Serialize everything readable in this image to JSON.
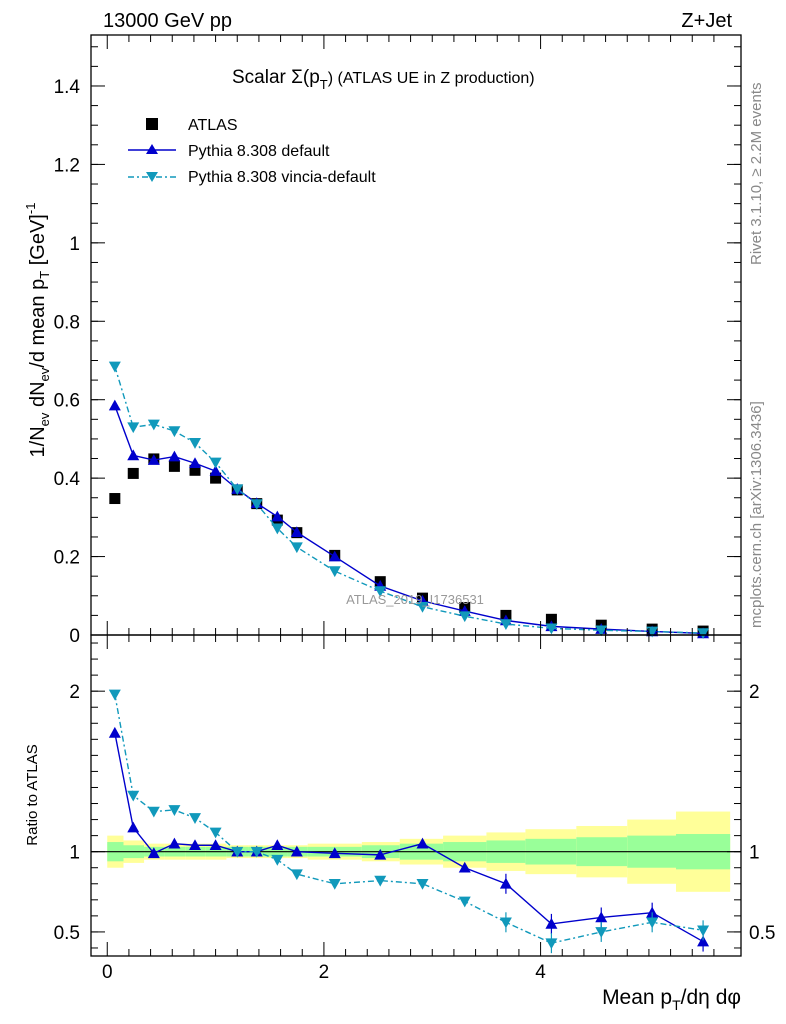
{
  "header": {
    "left": "13000 GeV pp",
    "right": "Z+Jet"
  },
  "side_text": {
    "rivet": "Rivet 3.1.10, ≥ 2.2M events",
    "mcplots": "mcplots.cern.ch [arXiv:1306.3436]"
  },
  "watermark": "ATLAS_2019_I1736531",
  "colors": {
    "atlas": "#000000",
    "pythia_default": "#0000cc",
    "vincia": "#1199bb",
    "band_inner": "#99ff99",
    "band_outer": "#ffff99"
  },
  "chart_data": [
    {
      "type": "scatter",
      "panel": "main",
      "title": "Scalar Σ(p_T) (ATLAS UE in Z production)",
      "title_main": "Scalar ",
      "title_sigma": "Σ(p",
      "title_sub": "T",
      "title_rest": ") (ATLAS UE in Z production)",
      "ylabel": "1/N_ev dN_ev/d mean p_T [GeV]^-1",
      "ylabel_parts": {
        "p1": "1/N",
        "s1": "ev",
        "p2": " dN",
        "s2": "ev",
        "p3": "/d mean p",
        "s3": "T",
        "p4": " [GeV]",
        "sup": "-1"
      },
      "xlim": [
        -0.15,
        5.85
      ],
      "ylim": [
        0,
        1.53
      ],
      "y_ticks": [
        0,
        0.2,
        0.4,
        0.6,
        0.8,
        1,
        1.2,
        1.4
      ],
      "y_tick_labels": [
        "0",
        "0.2",
        "0.4",
        "0.6",
        "0.8",
        "1",
        "1.2",
        "1.4"
      ],
      "legend_position": "top-left",
      "series": [
        {
          "name": "ATLAS",
          "style": "square",
          "x": [
            0.07,
            0.24,
            0.43,
            0.62,
            0.81,
            1.0,
            1.2,
            1.38,
            1.57,
            1.75,
            2.1,
            2.52,
            2.91,
            3.3,
            3.68,
            4.1,
            4.56,
            5.03,
            5.5
          ],
          "y": [
            0.348,
            0.412,
            0.449,
            0.43,
            0.42,
            0.4,
            0.37,
            0.335,
            0.293,
            0.261,
            0.203,
            0.136,
            0.094,
            0.07,
            0.05,
            0.04,
            0.025,
            0.015,
            0.01
          ]
        },
        {
          "name": "Pythia 8.308 default",
          "style": "triangle-up-solid",
          "x": [
            0.07,
            0.24,
            0.43,
            0.62,
            0.81,
            1.0,
            1.2,
            1.38,
            1.57,
            1.75,
            2.1,
            2.52,
            2.91,
            3.3,
            3.68,
            4.1,
            4.56,
            5.03,
            5.5
          ],
          "y": [
            0.585,
            0.458,
            0.446,
            0.455,
            0.438,
            0.418,
            0.372,
            0.336,
            0.302,
            0.262,
            0.2,
            0.125,
            0.087,
            0.061,
            0.037,
            0.022,
            0.015,
            0.009,
            0.004
          ]
        },
        {
          "name": "Pythia 8.308 vincia-default",
          "style": "triangle-down-dashdot",
          "x": [
            0.07,
            0.24,
            0.43,
            0.62,
            0.81,
            1.0,
            1.2,
            1.38,
            1.57,
            1.75,
            2.1,
            2.52,
            2.91,
            3.3,
            3.68,
            4.1,
            4.56,
            5.03,
            5.5
          ],
          "y": [
            0.685,
            0.53,
            0.537,
            0.52,
            0.49,
            0.44,
            0.372,
            0.334,
            0.272,
            0.224,
            0.163,
            0.112,
            0.072,
            0.048,
            0.028,
            0.017,
            0.012,
            0.009,
            0.005
          ]
        }
      ]
    },
    {
      "type": "line",
      "panel": "ratio",
      "xlabel": "Mean p_T/dη dφ",
      "xlabel_parts": {
        "p1": "Mean p",
        "s1": "T",
        "p2": "/dη dφ"
      },
      "ylabel": "Ratio to ATLAS",
      "xlim": [
        -0.15,
        5.85
      ],
      "ylim": [
        0.35,
        2.35
      ],
      "x_ticks": [
        0,
        2,
        4
      ],
      "x_tick_labels": [
        "0",
        "2",
        "4"
      ],
      "y_ticks": [
        0.5,
        1,
        2
      ],
      "y_tick_labels": [
        "0.5",
        "1",
        "2"
      ],
      "reference_line": 1,
      "bands": {
        "edges": [
          0,
          0.15,
          0.34,
          0.53,
          0.72,
          0.91,
          1.1,
          1.3,
          1.47,
          1.66,
          1.85,
          2.35,
          2.7,
          3.1,
          3.5,
          3.86,
          4.33,
          4.8,
          5.25,
          5.75
        ],
        "inner_low": [
          0.94,
          0.96,
          0.97,
          0.97,
          0.97,
          0.97,
          0.97,
          0.97,
          0.97,
          0.97,
          0.97,
          0.96,
          0.95,
          0.94,
          0.93,
          0.92,
          0.91,
          0.9,
          0.89
        ],
        "inner_high": [
          1.06,
          1.04,
          1.03,
          1.03,
          1.03,
          1.03,
          1.03,
          1.03,
          1.03,
          1.03,
          1.03,
          1.04,
          1.05,
          1.06,
          1.07,
          1.08,
          1.09,
          1.1,
          1.11
        ],
        "outer_low": [
          0.9,
          0.93,
          0.95,
          0.95,
          0.95,
          0.95,
          0.96,
          0.96,
          0.96,
          0.96,
          0.95,
          0.94,
          0.92,
          0.9,
          0.88,
          0.86,
          0.84,
          0.8,
          0.75
        ],
        "outer_high": [
          1.1,
          1.07,
          1.05,
          1.05,
          1.05,
          1.05,
          1.04,
          1.04,
          1.04,
          1.04,
          1.05,
          1.06,
          1.08,
          1.1,
          1.12,
          1.14,
          1.16,
          1.2,
          1.25
        ]
      },
      "series": [
        {
          "name": "Pythia 8.308 default",
          "style": "triangle-up-solid",
          "x": [
            0.07,
            0.24,
            0.43,
            0.62,
            0.81,
            1.0,
            1.2,
            1.38,
            1.57,
            1.75,
            2.1,
            2.52,
            2.91,
            3.3,
            3.68,
            4.1,
            4.56,
            5.03,
            5.5
          ],
          "y": [
            1.74,
            1.15,
            0.99,
            1.05,
            1.04,
            1.04,
            1.0,
            1.0,
            1.04,
            1.0,
            0.99,
            0.98,
            1.05,
            0.9,
            0.8,
            0.55,
            0.59,
            0.62,
            0.44
          ]
        },
        {
          "name": "Pythia 8.308 vincia-default",
          "style": "triangle-down-dashdot",
          "x": [
            0.07,
            0.24,
            0.43,
            0.62,
            0.81,
            1.0,
            1.2,
            1.38,
            1.57,
            1.75,
            2.1,
            2.52,
            2.91,
            3.3,
            3.68,
            4.1,
            4.56,
            5.03,
            5.5
          ],
          "y": [
            1.98,
            1.35,
            1.25,
            1.26,
            1.21,
            1.12,
            1.0,
            1.0,
            0.95,
            0.86,
            0.8,
            0.82,
            0.8,
            0.69,
            0.56,
            0.43,
            0.5,
            0.56,
            0.51
          ]
        }
      ]
    }
  ]
}
